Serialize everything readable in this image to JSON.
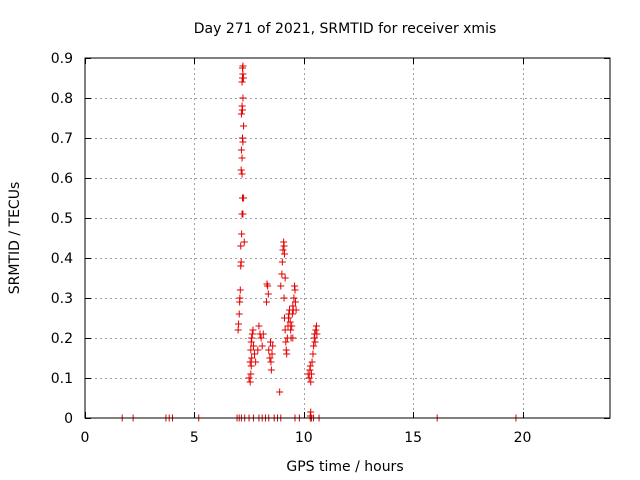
{
  "chart_data": {
    "type": "scatter",
    "title": "Day 271 of 2021, SRMTID for receiver xmis",
    "xlabel": "GPS time / hours",
    "ylabel": "SRMTID / TECUs",
    "xlim": [
      0,
      24
    ],
    "ylim": [
      0,
      0.9
    ],
    "xticks": [
      0,
      5,
      10,
      15,
      20
    ],
    "yticks": [
      0,
      0.1,
      0.2,
      0.3,
      0.4,
      0.5,
      0.6,
      0.7,
      0.8,
      0.9
    ],
    "grid": true,
    "marker": "+",
    "color": "#e00000",
    "series": [
      {
        "name": "SRMTID",
        "points": [
          [
            1.7,
            0
          ],
          [
            2.2,
            0
          ],
          [
            3.7,
            0
          ],
          [
            3.85,
            0
          ],
          [
            4.0,
            0
          ],
          [
            5.2,
            0
          ],
          [
            6.95,
            0
          ],
          [
            7.05,
            0
          ],
          [
            7.15,
            0
          ],
          [
            7.3,
            0
          ],
          [
            7.5,
            0
          ],
          [
            7.7,
            0
          ],
          [
            7.95,
            0
          ],
          [
            8.1,
            0
          ],
          [
            8.25,
            0
          ],
          [
            8.4,
            0
          ],
          [
            8.65,
            0
          ],
          [
            8.8,
            0
          ],
          [
            8.95,
            0
          ],
          [
            9.6,
            0
          ],
          [
            9.8,
            0
          ],
          [
            10.3,
            0
          ],
          [
            10.35,
            0
          ],
          [
            10.45,
            0
          ],
          [
            10.7,
            0
          ],
          [
            16.1,
            0
          ],
          [
            19.7,
            0
          ],
          [
            7.0,
            0.22
          ],
          [
            7.02,
            0.235
          ],
          [
            7.05,
            0.26
          ],
          [
            7.07,
            0.29
          ],
          [
            7.08,
            0.3
          ],
          [
            7.1,
            0.32
          ],
          [
            7.12,
            0.38
          ],
          [
            7.14,
            0.39
          ],
          [
            7.12,
            0.43
          ],
          [
            7.16,
            0.46
          ],
          [
            7.18,
            0.51
          ],
          [
            7.2,
            0.55
          ],
          [
            7.22,
            0.51
          ],
          [
            7.25,
            0.55
          ],
          [
            7.14,
            0.62
          ],
          [
            7.18,
            0.61
          ],
          [
            7.15,
            0.67
          ],
          [
            7.18,
            0.65
          ],
          [
            7.2,
            0.7
          ],
          [
            7.22,
            0.69
          ],
          [
            7.15,
            0.76
          ],
          [
            7.18,
            0.78
          ],
          [
            7.2,
            0.77
          ],
          [
            7.22,
            0.8
          ],
          [
            7.25,
            0.73
          ],
          [
            7.18,
            0.84
          ],
          [
            7.2,
            0.85
          ],
          [
            7.22,
            0.86
          ],
          [
            7.2,
            0.875
          ],
          [
            7.22,
            0.88
          ],
          [
            7.28,
            0.44
          ],
          [
            7.24,
            0.85
          ],
          [
            7.5,
            0.1
          ],
          [
            7.55,
            0.09
          ],
          [
            7.58,
            0.11
          ],
          [
            7.6,
            0.13
          ],
          [
            7.62,
            0.15
          ],
          [
            7.58,
            0.17
          ],
          [
            7.6,
            0.19
          ],
          [
            7.62,
            0.2
          ],
          [
            7.65,
            0.21
          ],
          [
            7.68,
            0.22
          ],
          [
            7.55,
            0.14
          ],
          [
            7.7,
            0.18
          ],
          [
            7.75,
            0.16
          ],
          [
            7.8,
            0.14
          ],
          [
            7.9,
            0.17
          ],
          [
            7.95,
            0.23
          ],
          [
            8.0,
            0.21
          ],
          [
            8.05,
            0.2
          ],
          [
            8.1,
            0.18
          ],
          [
            8.15,
            0.21
          ],
          [
            8.3,
            0.29
          ],
          [
            8.35,
            0.33
          ],
          [
            8.32,
            0.335
          ],
          [
            8.38,
            0.31
          ],
          [
            8.4,
            0.17
          ],
          [
            8.45,
            0.15
          ],
          [
            8.48,
            0.19
          ],
          [
            8.5,
            0.14
          ],
          [
            8.52,
            0.12
          ],
          [
            8.55,
            0.16
          ],
          [
            8.58,
            0.18
          ],
          [
            8.9,
            0.065
          ],
          [
            8.95,
            0.33
          ],
          [
            9.0,
            0.36
          ],
          [
            9.02,
            0.39
          ],
          [
            9.05,
            0.42
          ],
          [
            9.08,
            0.44
          ],
          [
            9.1,
            0.43
          ],
          [
            9.12,
            0.41
          ],
          [
            9.15,
            0.35
          ],
          [
            9.1,
            0.3
          ],
          [
            9.12,
            0.25
          ],
          [
            9.15,
            0.22
          ],
          [
            9.18,
            0.19
          ],
          [
            9.2,
            0.17
          ],
          [
            9.22,
            0.16
          ],
          [
            9.25,
            0.2
          ],
          [
            9.28,
            0.23
          ],
          [
            9.3,
            0.25
          ],
          [
            9.32,
            0.26
          ],
          [
            9.35,
            0.27
          ],
          [
            9.38,
            0.24
          ],
          [
            9.4,
            0.22
          ],
          [
            9.42,
            0.2
          ],
          [
            9.45,
            0.23
          ],
          [
            9.48,
            0.26
          ],
          [
            9.5,
            0.28
          ],
          [
            9.52,
            0.27
          ],
          [
            9.55,
            0.3
          ],
          [
            9.58,
            0.33
          ],
          [
            9.6,
            0.32
          ],
          [
            9.62,
            0.29
          ],
          [
            9.65,
            0.27
          ],
          [
            9.5,
            0.2
          ],
          [
            10.2,
            0.11
          ],
          [
            10.25,
            0.1
          ],
          [
            10.28,
            0.12
          ],
          [
            10.3,
            0.13
          ],
          [
            10.32,
            0.09
          ],
          [
            10.35,
            0.11
          ],
          [
            10.38,
            0.14
          ],
          [
            10.42,
            0.16
          ],
          [
            10.45,
            0.18
          ],
          [
            10.48,
            0.2
          ],
          [
            10.5,
            0.21
          ],
          [
            10.52,
            0.19
          ],
          [
            10.55,
            0.22
          ],
          [
            10.58,
            0.23
          ],
          [
            10.6,
            0.21
          ],
          [
            10.3,
            0.005
          ],
          [
            10.32,
            0.015
          ]
        ]
      }
    ]
  }
}
